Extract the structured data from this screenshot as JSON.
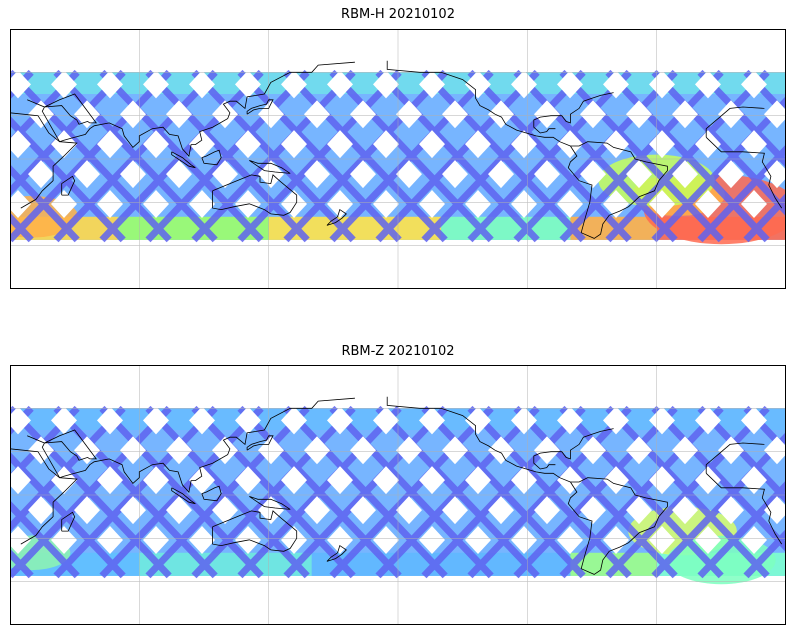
{
  "panels": [
    {
      "title": "RBM-H 20210102",
      "south_band": [
        {
          "lon_from": 0,
          "lon_to": 50,
          "color": "#ffd84a"
        },
        {
          "lon_from": 50,
          "lon_to": 120,
          "color": "#9cff6a"
        },
        {
          "lon_from": 120,
          "lon_to": 200,
          "color": "#ffe34a"
        },
        {
          "lon_from": 200,
          "lon_to": 260,
          "color": "#7dffc0"
        },
        {
          "lon_from": 260,
          "lon_to": 300,
          "color": "#ffb048"
        },
        {
          "lon_from": 300,
          "lon_to": 360,
          "color": "#ff6a50"
        }
      ],
      "hot_regions": [
        {
          "lon": 330,
          "lat": -35,
          "r": 20,
          "color": "#ff6a50"
        },
        {
          "lon": 310,
          "lat": -25,
          "r": 12,
          "color": "#ffb048"
        },
        {
          "lon": 10,
          "lat": -40,
          "r": 12,
          "color": "#ffb048"
        },
        {
          "lon": 300,
          "lat": -15,
          "r": 15,
          "color": "#c6ff5a"
        }
      ],
      "north_tint": "#6ef7e0"
    },
    {
      "title": "RBM-Z 20210102",
      "south_band": [
        {
          "lon_from": 0,
          "lon_to": 60,
          "color": "#5fc0ff"
        },
        {
          "lon_from": 60,
          "lon_to": 140,
          "color": "#6eeadf"
        },
        {
          "lon_from": 140,
          "lon_to": 260,
          "color": "#5fb8ff"
        },
        {
          "lon_from": 260,
          "lon_to": 300,
          "color": "#9cff8a"
        },
        {
          "lon_from": 300,
          "lon_to": 360,
          "color": "#7dffd0"
        }
      ],
      "hot_regions": [
        {
          "lon": 312,
          "lat": -25,
          "r": 14,
          "color": "#d9ff6a"
        },
        {
          "lon": 330,
          "lat": -45,
          "r": 14,
          "color": "#7dffc0"
        },
        {
          "lon": 10,
          "lat": -40,
          "r": 10,
          "color": "#8ef5b0"
        }
      ],
      "north_tint": "#5fc0ff"
    }
  ],
  "track_color": "#5f63f0",
  "track_color_light": "#5fa8ff"
}
